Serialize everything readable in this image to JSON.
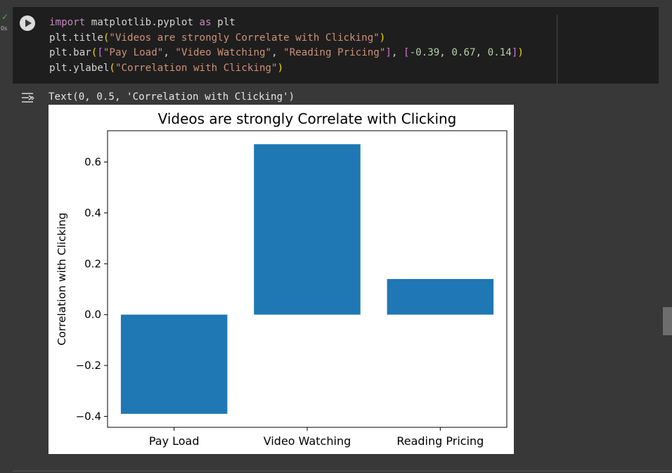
{
  "cell": {
    "exec_time": "0s",
    "status_icon": "check-icon",
    "run_icon": "play-icon"
  },
  "code": {
    "line1": {
      "kw1": "import",
      "mod": " matplotlib.pyplot ",
      "kw2": "as",
      "alias": " plt"
    },
    "line2": {
      "fn": "plt.title",
      "open": "(",
      "arg": "\"Videos are strongly Correlate with Clicking\"",
      "close": ")"
    },
    "line3": {
      "fn": "plt.bar",
      "open": "(",
      "lb1": "[",
      "s1": "\"Pay Load\"",
      "c1": ", ",
      "s2": "\"Video Watching\"",
      "c2": ", ",
      "s3": "\"Reading Pricing\"",
      "rb1": "]",
      "c3": ", ",
      "lb2": "[",
      "n1": "-0.39",
      "c4": ", ",
      "n2": "0.67",
      "c5": ", ",
      "n3": "0.14",
      "rb2": "]",
      "close": ")"
    },
    "line4": {
      "fn": "plt.ylabel",
      "open": "(",
      "arg": "\"Correlation with Clicking\"",
      "close": ")"
    }
  },
  "output": {
    "icon": "output-toggle-icon",
    "text": "Text(0, 0.5, 'Correlation with Clicking')"
  },
  "chart_data": {
    "type": "bar",
    "title": "Videos are strongly Correlate with Clicking",
    "xlabel": "",
    "ylabel": "Correlation with Clicking",
    "categories": [
      "Pay Load",
      "Video Watching",
      "Reading Pricing"
    ],
    "values": [
      -0.39,
      0.67,
      0.14
    ],
    "ylim": [
      -0.443,
      0.723
    ],
    "yticks": [
      -0.4,
      -0.2,
      0.0,
      0.2,
      0.4,
      0.6
    ],
    "ytick_labels": [
      "−0.4",
      "−0.2",
      "0.0",
      "0.2",
      "0.4",
      "0.6"
    ],
    "bar_color": "#1f77b4",
    "grid": false,
    "legend": "none"
  }
}
